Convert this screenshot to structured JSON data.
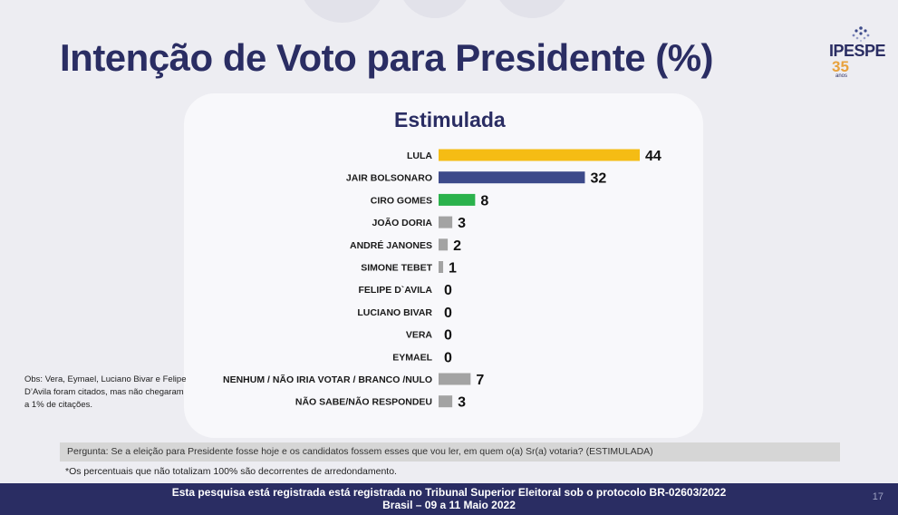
{
  "slide": {
    "title": "Intenção de Voto para Presidente (%)",
    "subtitle": "Estimulada",
    "obs": "Obs: Vera, Eymael, Luciano Bivar e Felipe D’Avila foram citados, mas não chegaram a 1% de citações.",
    "question": "Pergunta:  Se a eleição para Presidente fosse hoje e os candidatos fossem esses que vou ler, em quem o(a) Sr(a) votaria? (ESTIMULADA)",
    "note": "*Os percentuais que não totalizam 100% são decorrentes de arredondamento.",
    "footer_line1": "Esta pesquisa está registrada está registrada no Tribunal Superior Eleitoral sob o protocolo BR-02603/2022",
    "footer_line2": "Brasil – 09 a 11 Maio 2022",
    "page_number": "17"
  },
  "logo": {
    "name": "IPESPE",
    "number": "35",
    "sub": "anos"
  },
  "colors": {
    "title": "#2a2d63",
    "lula": "#f5bc14",
    "bolsonaro": "#3d4a8a",
    "ciro": "#2bb24c",
    "others": "#a3a3a3",
    "footer_bg": "#2a2d63",
    "logo_accent": "#e8a23d"
  },
  "chart_data": {
    "type": "bar",
    "orientation": "horizontal",
    "title": "Estimulada",
    "categories": [
      "LULA",
      "JAIR BOLSONARO",
      "CIRO GOMES",
      "JOÃO DORIA",
      "ANDRÉ JANONES",
      "SIMONE TEBET",
      "FELIPE D`AVILA",
      "LUCIANO BIVAR",
      "VERA",
      "EYMAEL",
      "NENHUM / NÃO IRIA VOTAR / BRANCO /NULO",
      "NÃO SABE/NÃO RESPONDEU"
    ],
    "values": [
      44,
      32,
      8,
      3,
      2,
      1,
      0,
      0,
      0,
      0,
      7,
      3
    ],
    "bar_colors": [
      "#f5bc14",
      "#3d4a8a",
      "#2bb24c",
      "#a3a3a3",
      "#a3a3a3",
      "#a3a3a3",
      "#a3a3a3",
      "#a3a3a3",
      "#a3a3a3",
      "#a3a3a3",
      "#a3a3a3",
      "#a3a3a3"
    ],
    "xlim": [
      0,
      44
    ],
    "grid": false,
    "data_labels": true
  }
}
